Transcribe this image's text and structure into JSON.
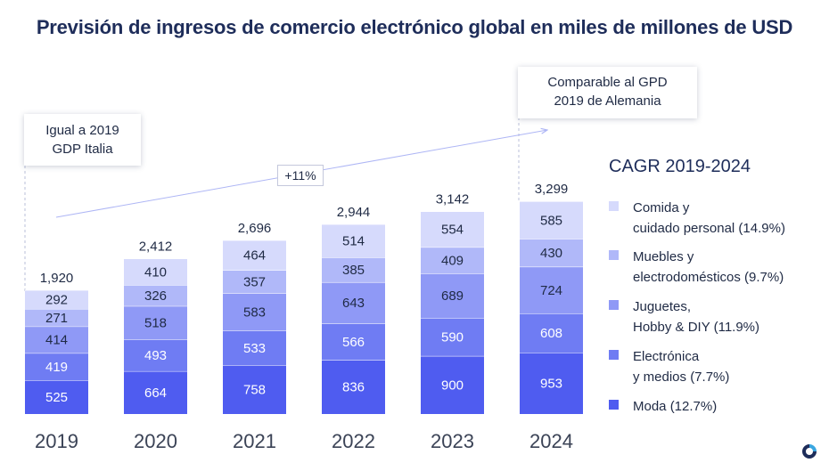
{
  "title": "Previsión de ingresos de comercio electrónico global en miles de millones de USD",
  "callouts": [
    {
      "text": "Igual a 2019\nGDP Italia"
    },
    {
      "text": "Comparable al GPD\n2019 de Alemania"
    }
  ],
  "cagr_badge": "+11%",
  "legend_title": "CAGR 2019-2024",
  "colors": {
    "moda": "#4f5cf0",
    "electronica": "#6f7cf3",
    "juguetes": "#8f99f6",
    "muebles": "#b0b8f9",
    "comida": "#d6dafc",
    "title": "#1e2d5a",
    "arrow": "#aeb6f5"
  },
  "chart_data": {
    "type": "bar",
    "stacked": true,
    "categories": [
      "2019",
      "2020",
      "2021",
      "2022",
      "2023",
      "2024"
    ],
    "totals": [
      "1,920",
      "2,412",
      "2,696",
      "2,944",
      "3,142",
      "3,299"
    ],
    "series": [
      {
        "name": "Moda (12.7%)",
        "values": [
          525,
          664,
          758,
          836,
          900,
          953
        ],
        "color": "#4f5cf0"
      },
      {
        "name": "Electrónica\ny medios (7.7%)",
        "values": [
          419,
          493,
          533,
          566,
          590,
          608
        ],
        "color": "#6f7cf3"
      },
      {
        "name": "Juguetes,\nHobby & DIY (11.9%)",
        "values": [
          414,
          518,
          583,
          643,
          689,
          724
        ],
        "color": "#8f99f6"
      },
      {
        "name": "Muebles y\nelectrodomésticos (9.7%)",
        "values": [
          271,
          326,
          357,
          385,
          409,
          430
        ],
        "color": "#b0b8f9"
      },
      {
        "name": "Comida y\ncuidado personal (14.9%)",
        "values": [
          292,
          410,
          464,
          514,
          554,
          585
        ],
        "color": "#d6dafc"
      }
    ],
    "legend_position": "right",
    "grid": false
  }
}
